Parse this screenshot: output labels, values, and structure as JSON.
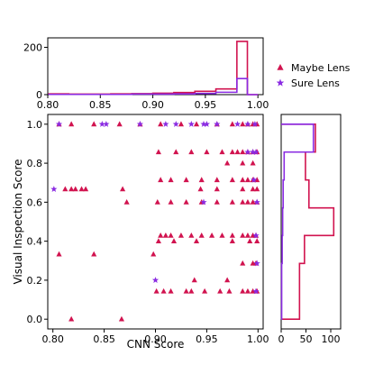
{
  "chart_data": [
    {
      "panel": "top-histogram",
      "type": "histogram",
      "xlabel": "",
      "ylabel": "",
      "xlim": [
        0.8,
        1.005
      ],
      "ylim": [
        0,
        240
      ],
      "xticks": [
        "0.80",
        "0.85",
        "0.90",
        "0.95",
        "1.00"
      ],
      "yticks": [
        "0",
        "200"
      ],
      "bin_edges": [
        0.801,
        0.82,
        0.84,
        0.86,
        0.88,
        0.9,
        0.92,
        0.94,
        0.96,
        0.98,
        0.99,
        1.0
      ],
      "series": [
        {
          "name": "Maybe Lens",
          "counts": [
            3,
            2,
            2,
            3,
            4,
            6,
            9,
            14,
            24,
            225,
            0
          ]
        },
        {
          "name": "Sure Lens",
          "counts": [
            1,
            1,
            1,
            1,
            2,
            2,
            3,
            5,
            10,
            68,
            0
          ]
        }
      ]
    },
    {
      "panel": "scatter",
      "type": "scatter",
      "xlabel": "CNN Score",
      "ylabel": "Visual Inspection Score",
      "xlim": [
        0.795,
        1.005
      ],
      "ylim": [
        -0.05,
        1.05
      ],
      "xticks": [
        "0.80",
        "0.85",
        "0.90",
        "0.95",
        "1.00"
      ],
      "yticks": [
        "0.0",
        "0.2",
        "0.4",
        "0.6",
        "0.8",
        "1.0"
      ],
      "series": [
        {
          "name": "Maybe Lens",
          "marker": "triangle",
          "points": [
            [
              0.818,
              0.0
            ],
            [
              0.867,
              0.0
            ],
            [
              0.806,
              0.333
            ],
            [
              0.901,
              0.143
            ],
            [
              0.908,
              0.143
            ],
            [
              0.915,
              0.143
            ],
            [
              0.93,
              0.143
            ],
            [
              0.935,
              0.143
            ],
            [
              0.948,
              0.143
            ],
            [
              0.963,
              0.143
            ],
            [
              0.972,
              0.143
            ],
            [
              0.985,
              0.143
            ],
            [
              0.99,
              0.143
            ],
            [
              0.995,
              0.143
            ],
            [
              0.999,
              0.143
            ],
            [
              0.938,
              0.2
            ],
            [
              0.97,
              0.2
            ],
            [
              0.985,
              0.286
            ],
            [
              0.995,
              0.286
            ],
            [
              0.998,
              0.286
            ],
            [
              0.84,
              0.333
            ],
            [
              0.898,
              0.333
            ],
            [
              0.903,
              0.4
            ],
            [
              0.918,
              0.4
            ],
            [
              0.94,
              0.4
            ],
            [
              0.975,
              0.4
            ],
            [
              0.992,
              0.4
            ],
            [
              0.999,
              0.4
            ],
            [
              0.905,
              0.429
            ],
            [
              0.91,
              0.429
            ],
            [
              0.915,
              0.429
            ],
            [
              0.925,
              0.429
            ],
            [
              0.935,
              0.429
            ],
            [
              0.945,
              0.429
            ],
            [
              0.955,
              0.429
            ],
            [
              0.965,
              0.429
            ],
            [
              0.975,
              0.429
            ],
            [
              0.985,
              0.429
            ],
            [
              0.99,
              0.429
            ],
            [
              0.995,
              0.429
            ],
            [
              0.998,
              0.429
            ],
            [
              0.872,
              0.6
            ],
            [
              0.902,
              0.6
            ],
            [
              0.915,
              0.6
            ],
            [
              0.93,
              0.6
            ],
            [
              0.945,
              0.6
            ],
            [
              0.96,
              0.6
            ],
            [
              0.975,
              0.6
            ],
            [
              0.985,
              0.6
            ],
            [
              0.99,
              0.6
            ],
            [
              0.995,
              0.6
            ],
            [
              0.999,
              0.6
            ],
            [
              0.812,
              0.667
            ],
            [
              0.818,
              0.667
            ],
            [
              0.822,
              0.667
            ],
            [
              0.828,
              0.667
            ],
            [
              0.832,
              0.667
            ],
            [
              0.868,
              0.667
            ],
            [
              0.944,
              0.667
            ],
            [
              0.96,
              0.667
            ],
            [
              0.985,
              0.667
            ],
            [
              0.995,
              0.667
            ],
            [
              0.999,
              0.667
            ],
            [
              0.905,
              0.714
            ],
            [
              0.915,
              0.714
            ],
            [
              0.93,
              0.714
            ],
            [
              0.945,
              0.714
            ],
            [
              0.96,
              0.714
            ],
            [
              0.975,
              0.714
            ],
            [
              0.985,
              0.714
            ],
            [
              0.99,
              0.714
            ],
            [
              0.995,
              0.714
            ],
            [
              0.999,
              0.714
            ],
            [
              0.97,
              0.8
            ],
            [
              0.985,
              0.8
            ],
            [
              0.995,
              0.8
            ],
            [
              0.903,
              0.857
            ],
            [
              0.92,
              0.857
            ],
            [
              0.935,
              0.857
            ],
            [
              0.95,
              0.857
            ],
            [
              0.965,
              0.857
            ],
            [
              0.975,
              0.857
            ],
            [
              0.98,
              0.857
            ],
            [
              0.985,
              0.857
            ],
            [
              0.99,
              0.857
            ],
            [
              0.995,
              0.857
            ],
            [
              0.999,
              0.857
            ],
            [
              0.806,
              1.0
            ],
            [
              0.818,
              1.0
            ],
            [
              0.84,
              1.0
            ],
            [
              0.865,
              1.0
            ],
            [
              0.885,
              1.0
            ],
            [
              0.905,
              1.0
            ],
            [
              0.925,
              1.0
            ],
            [
              0.94,
              1.0
            ],
            [
              0.96,
              1.0
            ],
            [
              0.975,
              1.0
            ],
            [
              0.985,
              1.0
            ],
            [
              0.99,
              1.0
            ],
            [
              0.995,
              1.0
            ],
            [
              0.999,
              1.0
            ]
          ]
        },
        {
          "name": "Sure Lens",
          "marker": "star",
          "points": [
            [
              0.801,
              0.667
            ],
            [
              0.806,
              1.0
            ],
            [
              0.848,
              1.0
            ],
            [
              0.852,
              1.0
            ],
            [
              0.885,
              1.0
            ],
            [
              0.91,
              1.0
            ],
            [
              0.92,
              1.0
            ],
            [
              0.935,
              1.0
            ],
            [
              0.947,
              1.0
            ],
            [
              0.95,
              1.0
            ],
            [
              0.96,
              1.0
            ],
            [
              0.98,
              1.0
            ],
            [
              0.99,
              1.0
            ],
            [
              0.997,
              1.0
            ],
            [
              0.9,
              0.2
            ],
            [
              0.947,
              0.6
            ],
            [
              0.99,
              0.857
            ],
            [
              0.995,
              0.857
            ],
            [
              0.998,
              0.857
            ],
            [
              0.996,
              0.714
            ],
            [
              0.999,
              0.6
            ],
            [
              0.998,
              0.429
            ],
            [
              0.999,
              0.286
            ],
            [
              0.998,
              0.143
            ]
          ]
        }
      ]
    },
    {
      "panel": "right-histogram",
      "type": "histogram",
      "orientation": "horizontal",
      "xlabel": "",
      "ylabel": "",
      "xlim": [
        0,
        120
      ],
      "ylim": [
        -0.05,
        1.05
      ],
      "xticks": [
        "0",
        "50",
        "100"
      ],
      "bin_edges": [
        0.0,
        0.143,
        0.286,
        0.429,
        0.571,
        0.714,
        0.857,
        1.0
      ],
      "series": [
        {
          "name": "Maybe Lens",
          "counts": [
            37,
            37,
            47,
            106,
            56,
            49,
            69
          ]
        },
        {
          "name": "Sure Lens",
          "counts": [
            1,
            1,
            2,
            3,
            4,
            6,
            65
          ]
        }
      ]
    }
  ],
  "legend": {
    "entries": [
      {
        "label": "Maybe Lens",
        "marker": "triangle",
        "color": "#d1134f"
      },
      {
        "label": "Sure Lens",
        "marker": "star",
        "color": "#8a2be2"
      }
    ],
    "placement": "top-right"
  },
  "colors": {
    "maybe": "#d1134f",
    "sure": "#8a2be2"
  }
}
